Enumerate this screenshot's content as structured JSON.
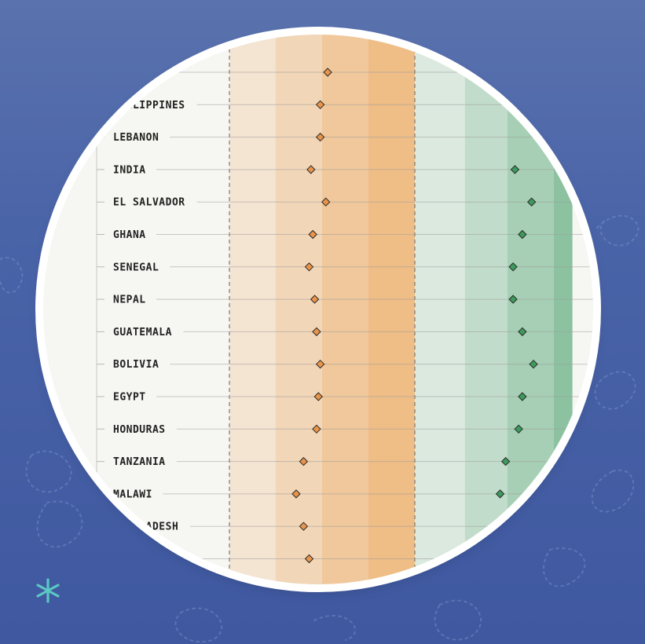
{
  "chart_data": {
    "type": "scatter",
    "title": "",
    "xlabel": "",
    "ylabel": "",
    "categories": [
      "",
      "PHILIPPINES",
      "LEBANON",
      "INDIA",
      "EL SALVADOR",
      "GHANA",
      "SENEGAL",
      "NEPAL",
      "GUATEMALA",
      "BOLIVIA",
      "EGYPT",
      "HONDURAS",
      "TANZANIA",
      "MALAWI",
      "BANGLADESH",
      ""
    ],
    "series": [
      {
        "color": "#e8944a",
        "marker": "diamond",
        "values": [
          0.53,
          0.49,
          0.49,
          0.44,
          0.52,
          0.45,
          0.43,
          0.46,
          0.47,
          0.49,
          0.48,
          0.47,
          0.4,
          0.36,
          0.4,
          0.43
        ]
      },
      {
        "color": "#3e9a5c",
        "marker": "diamond",
        "values": [
          null,
          null,
          null,
          1.54,
          1.63,
          1.58,
          1.53,
          1.53,
          1.58,
          1.64,
          1.58,
          1.56,
          1.49,
          1.46,
          null,
          null
        ]
      }
    ],
    "xlim": [
      -0.6,
      1.85
    ],
    "bands": [
      {
        "from": 0.0,
        "to": 0.25,
        "color": "#f4e4d2"
      },
      {
        "from": 0.25,
        "to": 0.5,
        "color": "#f1d6b8"
      },
      {
        "from": 0.5,
        "to": 0.75,
        "color": "#f0c89c"
      },
      {
        "from": 0.75,
        "to": 1.0,
        "color": "#efbd86"
      },
      {
        "from": 1.0,
        "to": 1.27,
        "color": "#dbe9df"
      },
      {
        "from": 1.27,
        "to": 1.5,
        "color": "#c2dccb"
      },
      {
        "from": 1.5,
        "to": 1.75,
        "color": "#a6cfb5"
      },
      {
        "from": 1.75,
        "to": 1.85,
        "color": "#8cc2a0"
      }
    ],
    "dashed_lines": [
      0.0,
      1.0
    ],
    "grid": true
  },
  "colors": {
    "background": "#4a64a8",
    "lens_background": "#f6f6f2",
    "accent": "#5bc8c2"
  },
  "icons": {
    "logo": "asterisk-icon"
  }
}
